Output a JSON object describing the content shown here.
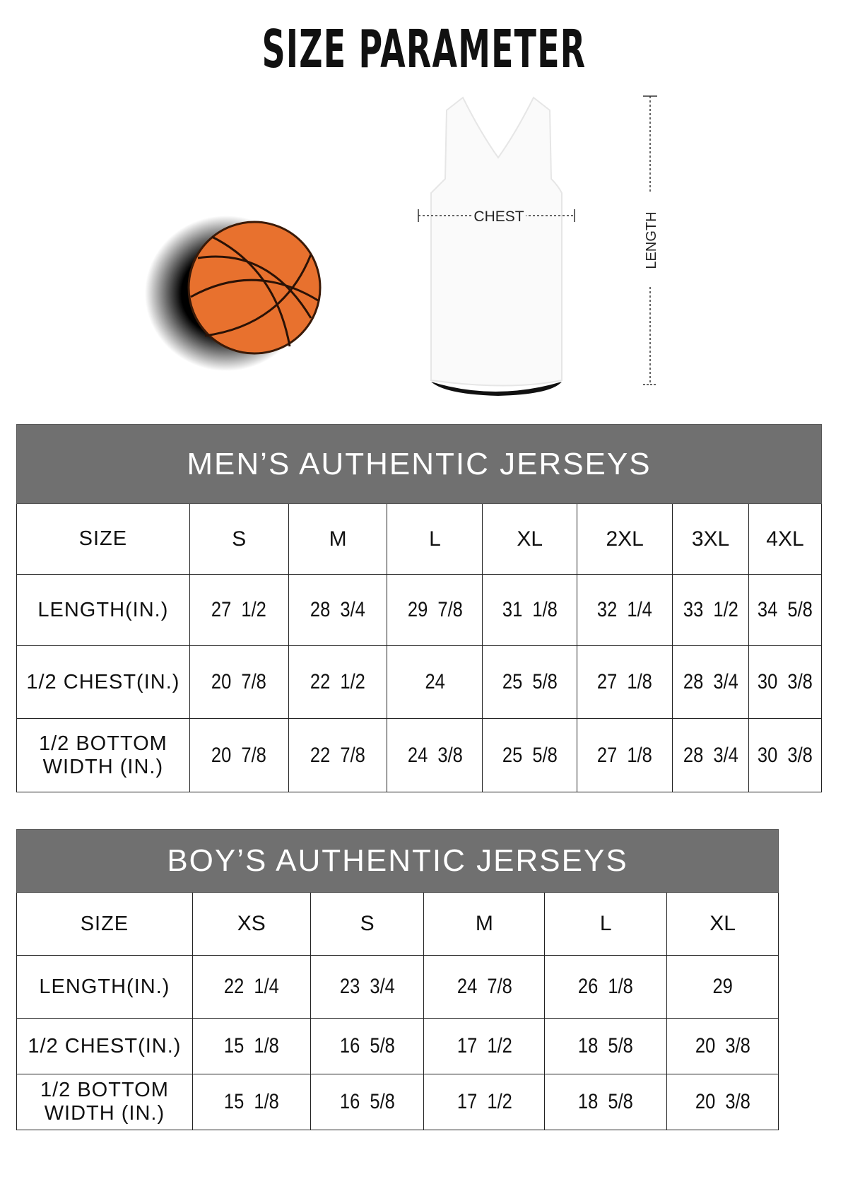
{
  "title": "SIZE PARAMETER",
  "diagram": {
    "chest_label": "CHEST",
    "length_label": "LENGTH",
    "colors": {
      "ball": "#E8712E",
      "header": "#707070"
    }
  },
  "mens": {
    "heading": "MEN’S AUTHENTIC JERSEYS",
    "columns": [
      "SIZE",
      "S",
      "M",
      "L",
      "XL",
      "2XL",
      "3XL",
      "4XL"
    ],
    "rows": [
      {
        "label": "LENGTH(IN.)",
        "values": [
          "27  1/2",
          "28  3/4",
          "29  7/8",
          "31  1/8",
          "32  1/4",
          "33  1/2",
          "34  5/8"
        ]
      },
      {
        "label": "1/2 CHEST(IN.)",
        "values": [
          "20  7/8",
          "22  1/2",
          "24",
          "25  5/8",
          "27  1/8",
          "28  3/4",
          "30  3/8"
        ]
      },
      {
        "label": "1/2 BOTTOM WIDTH  (IN.)",
        "values": [
          "20  7/8",
          "22  7/8",
          "24  3/8",
          "25  5/8",
          "27  1/8",
          "28  3/4",
          "30  3/8"
        ]
      }
    ]
  },
  "boys": {
    "heading": "BOY’S AUTHENTIC JERSEYS",
    "columns": [
      "SIZE",
      "XS",
      "S",
      "M",
      "L",
      "XL"
    ],
    "rows": [
      {
        "label": "LENGTH(IN.)",
        "values": [
          "22  1/4",
          "23  3/4",
          "24  7/8",
          "26  1/8",
          "29"
        ]
      },
      {
        "label": "1/2 CHEST(IN.)",
        "values": [
          "15  1/8",
          "16  5/8",
          "17  1/2",
          "18  5/8",
          "20  3/8"
        ]
      },
      {
        "label": "1/2 BOTTOM WIDTH  (IN.)",
        "values": [
          "15  1/8",
          "16  5/8",
          "17  1/2",
          "18  5/8",
          "20  3/8"
        ]
      }
    ]
  }
}
